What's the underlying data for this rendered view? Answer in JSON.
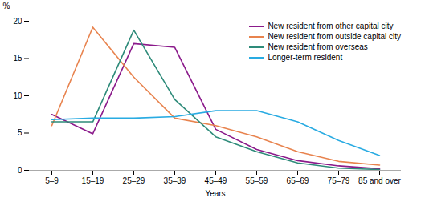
{
  "chart_data": {
    "type": "line",
    "categories": [
      "5–9",
      "15–19",
      "25–29",
      "35–39",
      "45–49",
      "55–59",
      "65–69",
      "75–79",
      "85 and over"
    ],
    "series": [
      {
        "name": "New resident from other capital city",
        "color": "#8b1a8b",
        "values": [
          7.5,
          4.9,
          17.0,
          16.5,
          5.5,
          2.8,
          1.3,
          0.6,
          0.2
        ]
      },
      {
        "name": "New resident from outside capital city",
        "color": "#e8834e",
        "values": [
          6.0,
          19.2,
          12.5,
          7.0,
          6.0,
          4.5,
          2.5,
          1.2,
          0.7
        ]
      },
      {
        "name": "New resident from overseas",
        "color": "#2e8b7a",
        "values": [
          6.5,
          6.5,
          18.8,
          9.5,
          4.5,
          2.5,
          1.0,
          0.3,
          0.1
        ]
      },
      {
        "name": "Longer-term resident",
        "color": "#29abe2",
        "values": [
          6.8,
          7.0,
          7.0,
          7.2,
          8.0,
          8.0,
          6.5,
          4.0,
          2.0
        ]
      }
    ],
    "ylim": [
      0,
      20
    ],
    "yticks": [
      0,
      5,
      10,
      15,
      20
    ],
    "ylabel": "%",
    "xlabel": "Years",
    "grid": false,
    "legend": "upper right"
  }
}
